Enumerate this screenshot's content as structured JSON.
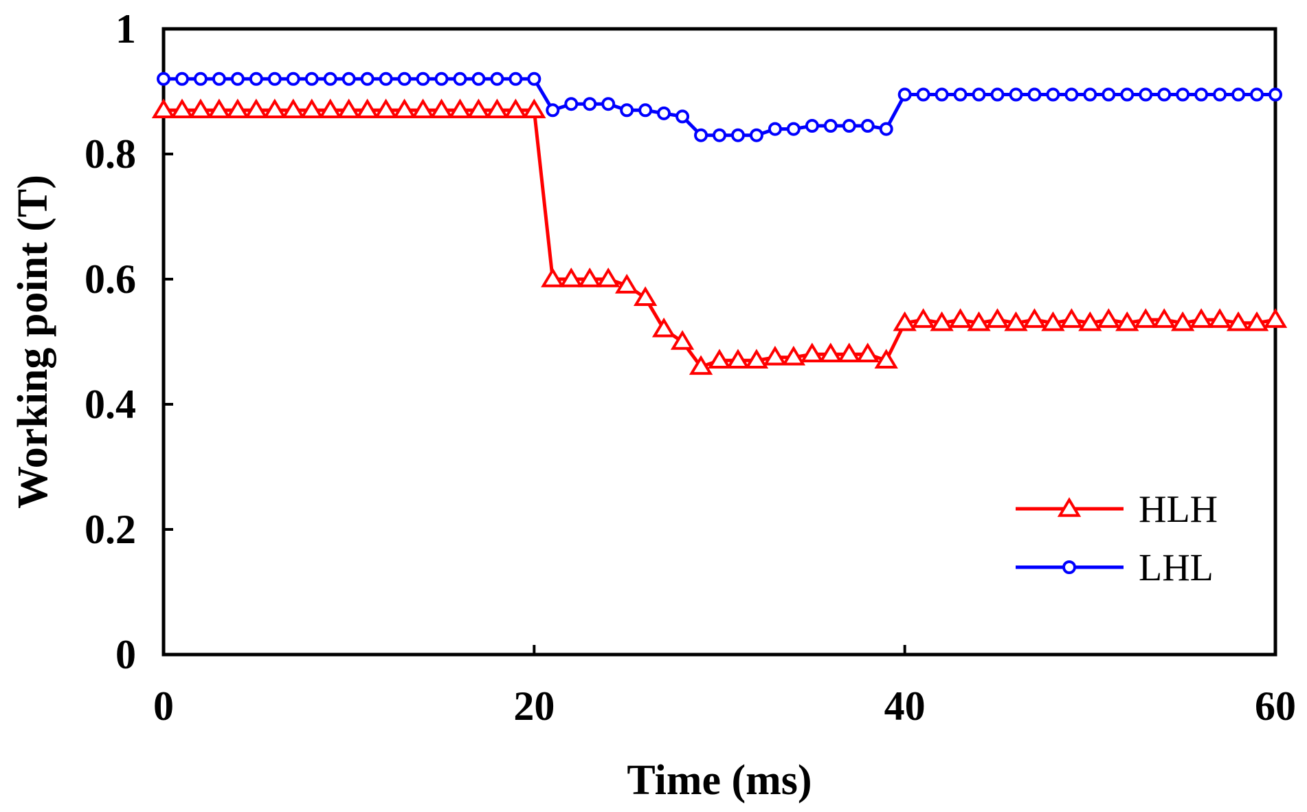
{
  "chart_data": {
    "type": "line",
    "title": "",
    "xlabel": "Time (ms)",
    "ylabel": "Working point (T)",
    "xlim": [
      0,
      60
    ],
    "ylim": [
      0,
      1
    ],
    "xticks": [
      0,
      20,
      40,
      60
    ],
    "yticks": [
      0,
      0.2,
      0.4,
      0.6,
      0.8,
      1
    ],
    "xtick_labels": [
      "0",
      "20",
      "40",
      "60"
    ],
    "ytick_labels": [
      "0",
      "0.2",
      "0.4",
      "0.6",
      "0.8",
      "1"
    ],
    "grid": false,
    "legend_position": "bottom-right",
    "series": [
      {
        "name": "HLH",
        "color": "#ff0000",
        "marker": "triangle",
        "x": [
          0,
          1,
          2,
          3,
          4,
          5,
          6,
          7,
          8,
          9,
          10,
          11,
          12,
          13,
          14,
          15,
          16,
          17,
          18,
          19,
          20,
          21,
          22,
          23,
          24,
          25,
          26,
          27,
          28,
          29,
          30,
          31,
          32,
          33,
          34,
          35,
          36,
          37,
          38,
          39,
          40,
          41,
          42,
          43,
          44,
          45,
          46,
          47,
          48,
          49,
          50,
          51,
          52,
          53,
          54,
          55,
          56,
          57,
          58,
          59,
          60
        ],
        "values": [
          0.87,
          0.87,
          0.87,
          0.87,
          0.87,
          0.87,
          0.87,
          0.87,
          0.87,
          0.87,
          0.87,
          0.87,
          0.87,
          0.87,
          0.87,
          0.87,
          0.87,
          0.87,
          0.87,
          0.87,
          0.87,
          0.6,
          0.6,
          0.6,
          0.6,
          0.59,
          0.57,
          0.52,
          0.5,
          0.46,
          0.47,
          0.47,
          0.47,
          0.475,
          0.475,
          0.48,
          0.48,
          0.48,
          0.48,
          0.47,
          0.53,
          0.535,
          0.53,
          0.535,
          0.53,
          0.535,
          0.53,
          0.535,
          0.53,
          0.535,
          0.53,
          0.535,
          0.53,
          0.535,
          0.535,
          0.53,
          0.535,
          0.535,
          0.53,
          0.53,
          0.535
        ]
      },
      {
        "name": "LHL",
        "color": "#0000ff",
        "marker": "circle",
        "x": [
          0,
          1,
          2,
          3,
          4,
          5,
          6,
          7,
          8,
          9,
          10,
          11,
          12,
          13,
          14,
          15,
          16,
          17,
          18,
          19,
          20,
          21,
          22,
          23,
          24,
          25,
          26,
          27,
          28,
          29,
          30,
          31,
          32,
          33,
          34,
          35,
          36,
          37,
          38,
          39,
          40,
          41,
          42,
          43,
          44,
          45,
          46,
          47,
          48,
          49,
          50,
          51,
          52,
          53,
          54,
          55,
          56,
          57,
          58,
          59,
          60
        ],
        "values": [
          0.92,
          0.92,
          0.92,
          0.92,
          0.92,
          0.92,
          0.92,
          0.92,
          0.92,
          0.92,
          0.92,
          0.92,
          0.92,
          0.92,
          0.92,
          0.92,
          0.92,
          0.92,
          0.92,
          0.92,
          0.92,
          0.87,
          0.88,
          0.88,
          0.88,
          0.87,
          0.87,
          0.865,
          0.86,
          0.83,
          0.83,
          0.83,
          0.83,
          0.84,
          0.84,
          0.845,
          0.845,
          0.845,
          0.845,
          0.84,
          0.895,
          0.895,
          0.895,
          0.895,
          0.895,
          0.895,
          0.895,
          0.895,
          0.895,
          0.895,
          0.895,
          0.895,
          0.895,
          0.895,
          0.895,
          0.895,
          0.895,
          0.895,
          0.895,
          0.895,
          0.895
        ]
      }
    ]
  }
}
